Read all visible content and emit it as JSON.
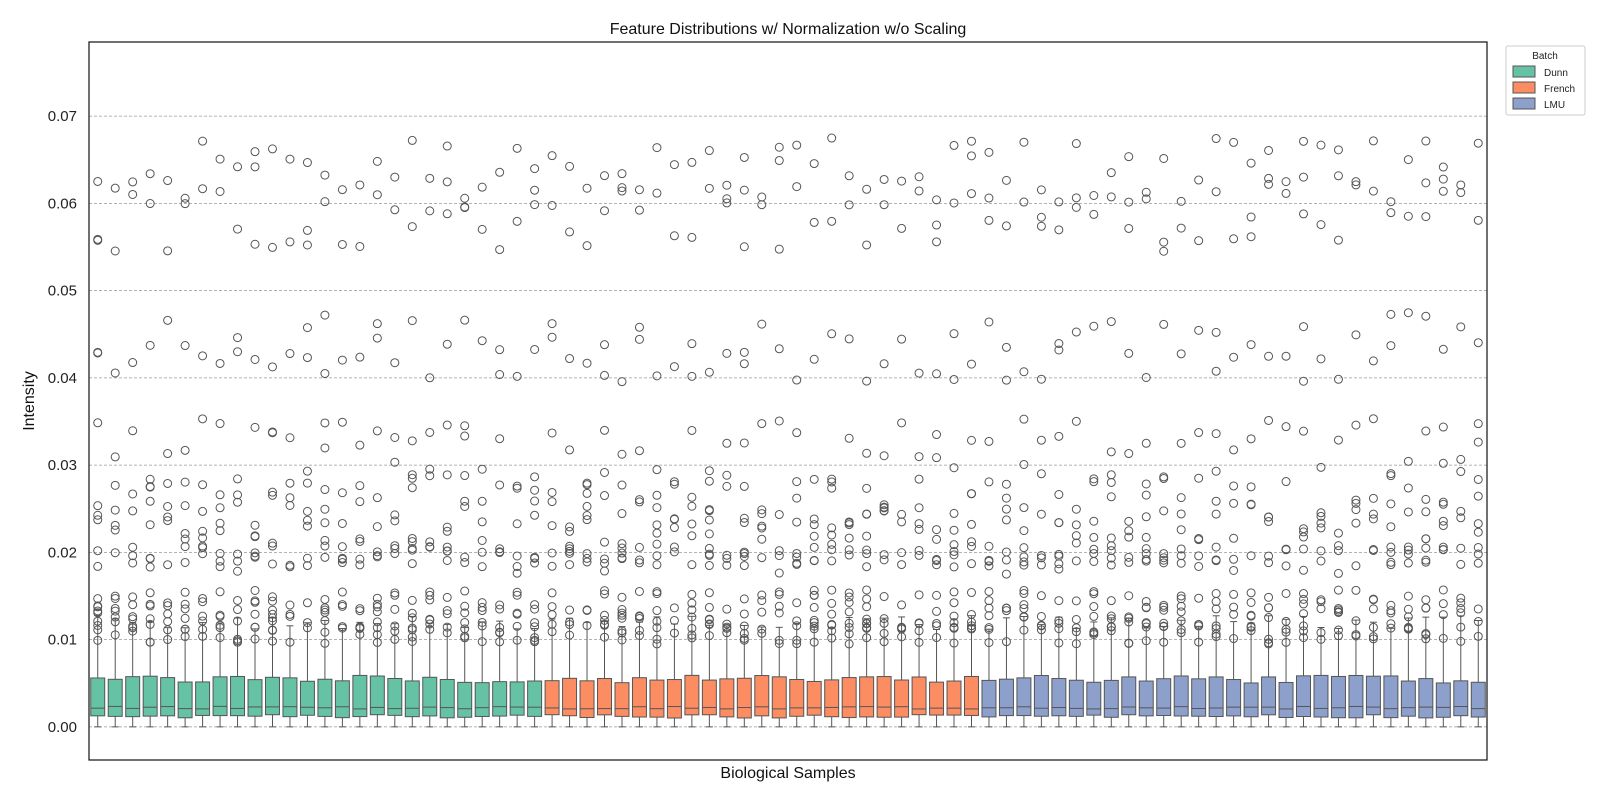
{
  "chart_data": {
    "type": "box",
    "title": "Feature Distributions w/ Normalization w/o Scaling",
    "xlabel": "Biological Samples",
    "ylabel": "Intensity",
    "ylim": [
      -0.0038,
      0.0785
    ],
    "yticks": [
      "0.00",
      "0.01",
      "0.02",
      "0.03",
      "0.04",
      "0.05",
      "0.06",
      "0.07"
    ],
    "ytick_values": [
      0.0,
      0.01,
      0.02,
      0.03,
      0.04,
      0.05,
      0.06,
      0.07
    ],
    "grid": "horizontal dashed",
    "legend": {
      "title": "Batch",
      "placement": "outside-top-right",
      "entries": [
        "Dunn",
        "French",
        "LMU"
      ]
    },
    "series": [
      {
        "name": "Dunn",
        "color": "#66c2a5",
        "sample_count": 26
      },
      {
        "name": "French",
        "color": "#fc8d62",
        "sample_count": 25
      },
      {
        "name": "LMU",
        "color": "#8da0cb",
        "sample_count": 29
      }
    ],
    "typical_box": {
      "min": 0.0,
      "q1": 0.0012,
      "median": 0.0022,
      "q3": 0.0053,
      "whisker_high": 0.0118
    },
    "outlier_clusters": [
      0.0107,
      0.0125,
      0.0145,
      0.0195,
      0.0215,
      0.0235,
      0.0255,
      0.0315,
      0.0435,
      0.0585,
      0.0635
    ]
  }
}
